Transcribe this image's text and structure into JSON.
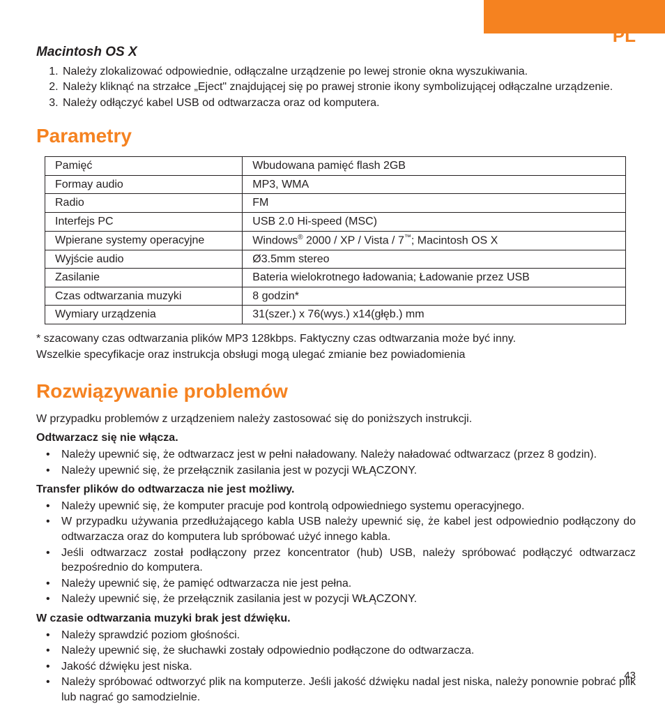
{
  "colors": {
    "accent": "#f58220",
    "text": "#231f20",
    "bg": "#ffffff"
  },
  "lang_badge": "PL",
  "page_number": "43",
  "osx": {
    "heading": "Macintosh OS X",
    "items": [
      "Należy zlokalizować odpowiednie, odłączalne urządzenie po lewej stronie okna wyszukiwania.",
      "Należy kliknąć na strzałce „Eject\" znajdującej się po prawej stronie ikony symbolizującej odłączalne urządzenie.",
      "Należy odłączyć kabel USB od odtwarzacza oraz od komputera."
    ]
  },
  "specs": {
    "heading": "Parametry",
    "rows": [
      [
        "Pamięć",
        "Wbudowana pamięć flash 2GB"
      ],
      [
        "Formay audio",
        "MP3, WMA"
      ],
      [
        "Radio",
        "FM"
      ],
      [
        "Interfejs PC",
        "USB 2.0 Hi-speed (MSC)"
      ],
      [
        "Wpierane systemy operacyjne",
        "Windows® 2000 / XP / Vista / 7™; Macintosh OS X"
      ],
      [
        "Wyjście audio",
        "Ø3.5mm stereo"
      ],
      [
        "Zasilanie",
        "Bateria wielokrotnego ładowania; Ładowanie przez USB"
      ],
      [
        "Czas odtwarzania muzyki",
        "8 godzin*"
      ],
      [
        "Wymiary urządzenia",
        "31(szer.) x 76(wys.) x14(głęb.) mm"
      ]
    ],
    "footnote1": "* szacowany czas odtwarzania plików MP3 128kbps. Faktyczny czas odtwarzania może być inny.",
    "footnote2": "Wszelkie specyfikacje oraz instrukcja obsługi mogą ulegać zmianie bez powiadomienia"
  },
  "trouble": {
    "heading": "Rozwiązywanie problemów",
    "intro": "W przypadku problemów z urządzeniem należy zastosować się do poniższych instrukcji.",
    "sections": [
      {
        "title": "Odtwarzacz się nie włącza.",
        "items": [
          "Należy upewnić się, że odtwarzacz jest w pełni naładowany. Należy naładować odtwarzacz (przez 8 godzin).",
          "Należy upewnić się, że przełącznik zasilania jest w pozycji WŁĄCZONY."
        ]
      },
      {
        "title": "Transfer plików do odtwarzacza nie jest możliwy.",
        "items": [
          "Należy upewnić się, że komputer pracuje pod kontrolą odpowiedniego systemu operacyjnego.",
          "W przypadku używania przedłużającego kabla USB należy upewnić się, że kabel jest odpowiednio podłączony do odtwarzacza oraz do komputera lub spróbować użyć innego kabla.",
          "Jeśli odtwarzacz został podłączony przez koncentrator (hub) USB, należy spróbować podłączyć odtwarzacz bezpośrednio do komputera.",
          "Należy upewnić się, że pamięć odtwarzacza nie jest pełna.",
          "Należy upewnić się, że przełącznik zasilania jest w pozycji WŁĄCZONY."
        ]
      },
      {
        "title": "W czasie odtwarzania muzyki brak jest dźwięku.",
        "items": [
          "Należy sprawdzić poziom głośności.",
          "Należy upewnić się, że słuchawki zostały odpowiednio podłączone do odtwarzacza.",
          "Jakość dźwięku jest niska.",
          "Należy spróbować odtworzyć plik na komputerze. Jeśli jakość dźwięku nadal jest niska, należy ponownie pobrać plik lub nagrać go samodzielnie."
        ]
      }
    ]
  }
}
